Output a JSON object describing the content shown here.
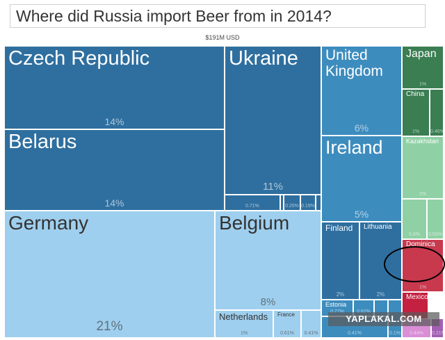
{
  "title": "Where did Russia import Beer from in 2014?",
  "total_label": "$191M USD",
  "watermark": "YAPLAKAL.COM",
  "chart_data": {
    "type": "treemap",
    "title": "Where did Russia import Beer from in 2014?",
    "total": "$191M USD",
    "cells": [
      {
        "key": "cz",
        "name": "Czech Republic",
        "share": "14%",
        "color": "#2f6f9f",
        "text_color": "#ffffff"
      },
      {
        "key": "by",
        "name": "Belarus",
        "share": "14%",
        "color": "#2f6f9f",
        "text_color": "#ffffff"
      },
      {
        "key": "ua",
        "name": "Ukraine",
        "share": "11%",
        "color": "#2f6f9f",
        "text_color": "#ffffff"
      },
      {
        "key": "ua_s1",
        "name": "",
        "share": "0.71%",
        "color": "#2f6f9f",
        "text_color": "#ffffff"
      },
      {
        "key": "ua_s2",
        "name": "",
        "share": "",
        "color": "#2f6f9f",
        "text_color": "#ffffff"
      },
      {
        "key": "ua_s3",
        "name": "",
        "share": "0.25%",
        "color": "#2f6f9f",
        "text_color": "#ffffff"
      },
      {
        "key": "ua_s4",
        "name": "",
        "share": "0.19%",
        "color": "#2f6f9f",
        "text_color": "#ffffff"
      },
      {
        "key": "ua_s5",
        "name": "",
        "share": "",
        "color": "#2f6f9f",
        "text_color": "#ffffff"
      },
      {
        "key": "de",
        "name": "Germany",
        "share": "21%",
        "color": "#9fcfee",
        "text_color": "#333333"
      },
      {
        "key": "be",
        "name": "Belgium",
        "share": "8%",
        "color": "#9fcfee",
        "text_color": "#333333"
      },
      {
        "key": "nl",
        "name": "Netherlands",
        "share": "1%",
        "color": "#9fcfee",
        "text_color": "#333333"
      },
      {
        "key": "fr",
        "name": "France",
        "share": "0.61%",
        "color": "#9fcfee",
        "text_color": "#333333"
      },
      {
        "key": "eu_s1",
        "name": "",
        "share": "0.41%",
        "color": "#9fcfee",
        "text_color": "#333333"
      },
      {
        "key": "gb",
        "name": "United\nKingdom",
        "share": "6%",
        "color": "#3d8cbe",
        "text_color": "#ffffff"
      },
      {
        "key": "ie",
        "name": "Ireland",
        "share": "5%",
        "color": "#3d8cbe",
        "text_color": "#ffffff"
      },
      {
        "key": "fi",
        "name": "Finland",
        "share": "2%",
        "color": "#2f6f9f",
        "text_color": "#ffffff"
      },
      {
        "key": "lt",
        "name": "Lithuania",
        "share": "2%",
        "color": "#2f6f9f",
        "text_color": "#ffffff"
      },
      {
        "key": "ee",
        "name": "Estonia",
        "share": "0.77%",
        "color": "#3d8cbe",
        "text_color": "#ffffff"
      },
      {
        "key": "ee_s1",
        "name": "",
        "share": "0.62%",
        "color": "#3d8cbe",
        "text_color": "#ffffff"
      },
      {
        "key": "ee_s2",
        "name": "",
        "share": "",
        "color": "#3d8cbe",
        "text_color": "#ffffff"
      },
      {
        "key": "ee_s3",
        "name": "",
        "share": "0.41%",
        "color": "#3d8cbe",
        "text_color": "#ffffff"
      },
      {
        "key": "ee_s4",
        "name": "",
        "share": "0.1%",
        "color": "#3d8cbe",
        "text_color": "#ffffff"
      },
      {
        "key": "jp",
        "name": "Japan",
        "share": "1%",
        "color": "#3a7e52",
        "text_color": "#ffffff"
      },
      {
        "key": "cn",
        "name": "China",
        "share": "1%",
        "color": "#3a7e52",
        "text_color": "#ffffff"
      },
      {
        "key": "as_s1",
        "name": "",
        "share": "0.46%",
        "color": "#3a7e52",
        "text_color": "#ffffff"
      },
      {
        "key": "kz",
        "name": "Kazakhstan",
        "share": "2%",
        "color": "#8fd0a4",
        "text_color": "#ffffff"
      },
      {
        "key": "as_s2",
        "name": "",
        "share": "0.8%",
        "color": "#8fd0a4",
        "text_color": "#ffffff"
      },
      {
        "key": "as_s3",
        "name": "",
        "share": "0.53%",
        "color": "#8fd0a4",
        "text_color": "#ffffff"
      },
      {
        "key": "dm",
        "name": "Dominica",
        "share": "1%",
        "color": "#c8394e",
        "text_color": "#ffffff"
      },
      {
        "key": "mx",
        "name": "Mexico",
        "share": "",
        "color": "#c4203f",
        "text_color": "#ffffff"
      },
      {
        "key": "am_s1",
        "name": "",
        "share": "0.44%",
        "color": "#d98ed6",
        "text_color": "#ffffff"
      },
      {
        "key": "am_s2",
        "name": "",
        "share": "0.21%",
        "color": "#a25fb3",
        "text_color": "#ffffff"
      }
    ]
  }
}
